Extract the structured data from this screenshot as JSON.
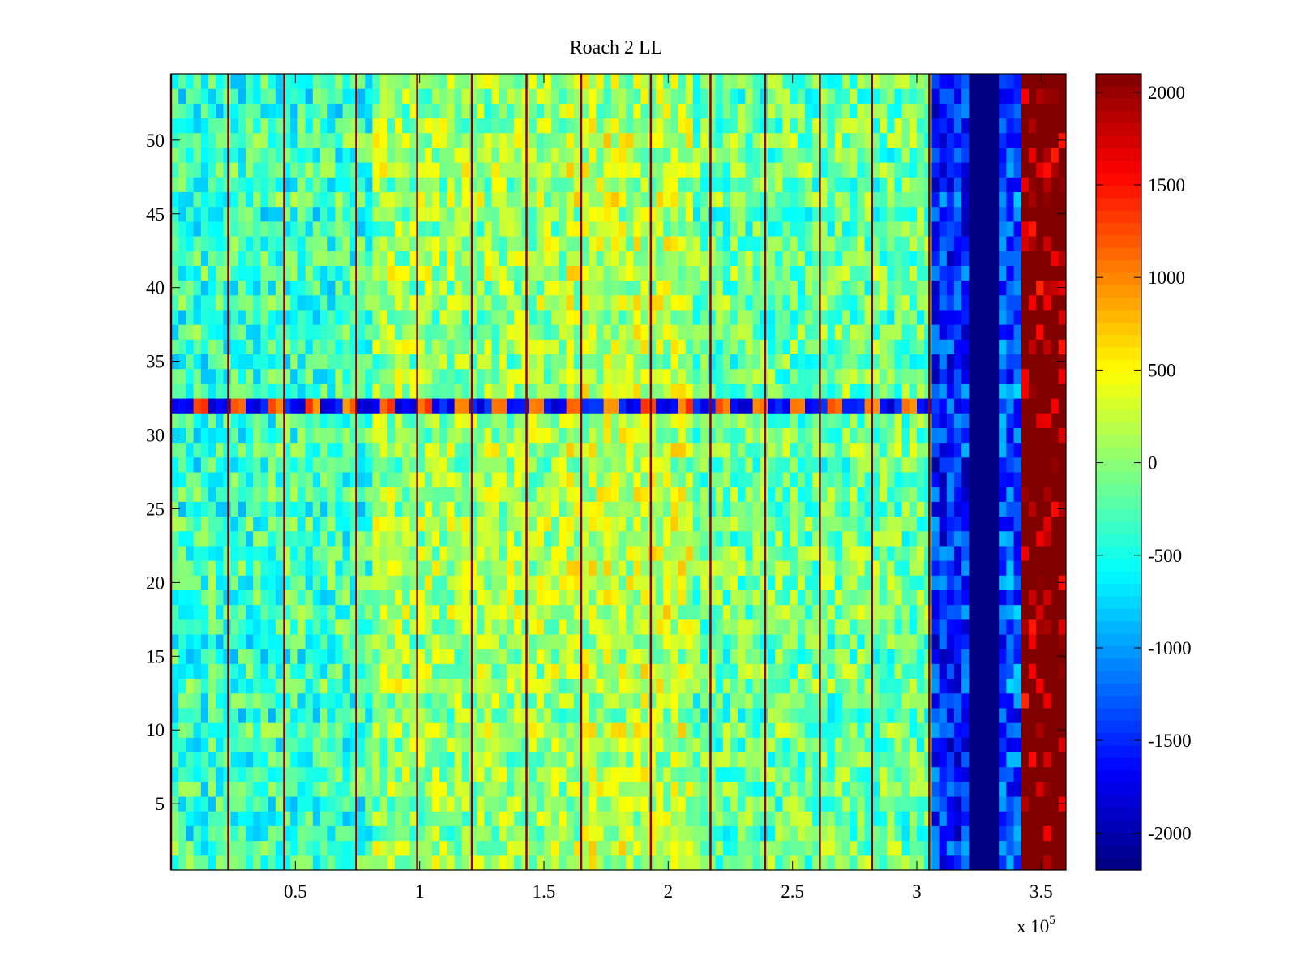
{
  "chart_data": {
    "type": "heatmap",
    "title": "Roach 2 LL",
    "xlabel": "",
    "ylabel": "",
    "x_multiplier_label": "x 10",
    "x_multiplier_exponent": "5",
    "xlim": [
      0,
      3.6
    ],
    "ylim": [
      0.5,
      54.5
    ],
    "x_ticks": [
      {
        "value": 0.5,
        "label": "0.5"
      },
      {
        "value": 1,
        "label": "1"
      },
      {
        "value": 1.5,
        "label": "1.5"
      },
      {
        "value": 2,
        "label": "2"
      },
      {
        "value": 2.5,
        "label": "2.5"
      },
      {
        "value": 3,
        "label": "3"
      },
      {
        "value": 3.5,
        "label": "3.5"
      }
    ],
    "y_ticks": [
      {
        "value": 5,
        "label": "5"
      },
      {
        "value": 10,
        "label": "10"
      },
      {
        "value": 15,
        "label": "15"
      },
      {
        "value": 20,
        "label": "20"
      },
      {
        "value": 25,
        "label": "25"
      },
      {
        "value": 30,
        "label": "30"
      },
      {
        "value": 35,
        "label": "35"
      },
      {
        "value": 40,
        "label": "40"
      },
      {
        "value": 45,
        "label": "45"
      },
      {
        "value": 50,
        "label": "50"
      }
    ],
    "colorbar": {
      "colormap": "jet",
      "range": [
        -2200,
        2100
      ],
      "ticks": [
        {
          "value": 2000,
          "label": "2000"
        },
        {
          "value": 1500,
          "label": "1500"
        },
        {
          "value": 1000,
          "label": "1000"
        },
        {
          "value": 500,
          "label": "500"
        },
        {
          "value": 0,
          "label": "0"
        },
        {
          "value": -500,
          "label": "-500"
        },
        {
          "value": -1000,
          "label": "-1000"
        },
        {
          "value": -1500,
          "label": "-1500"
        },
        {
          "value": -2000,
          "label": "-2000"
        }
      ]
    },
    "rows": 54,
    "segment_boundaries": [
      0.0,
      0.23,
      0.455,
      0.745,
      0.99,
      1.21,
      1.43,
      1.65,
      1.93,
      2.17,
      2.39,
      2.61,
      2.82,
      3.05
    ],
    "column_bands": [
      {
        "x_start": 0.0,
        "x_end": 0.8,
        "mean": -350
      },
      {
        "x_start": 0.8,
        "x_end": 1.6,
        "mean": 50
      },
      {
        "x_start": 1.6,
        "x_end": 2.1,
        "mean": 180
      },
      {
        "x_start": 2.1,
        "x_end": 3.05,
        "mean": -150
      },
      {
        "x_start": 3.05,
        "x_end": 3.22,
        "mean": -1500
      },
      {
        "x_start": 3.22,
        "x_end": 3.34,
        "mean": -2200
      },
      {
        "x_start": 3.34,
        "x_end": 3.42,
        "mean": -1300
      },
      {
        "x_start": 3.42,
        "x_end": 3.6,
        "mean": 2100
      }
    ],
    "anomalous_row": {
      "row": 32,
      "low_value": -1900,
      "high_value": 900
    },
    "color_colors": {
      "grid_line": "#8b0000",
      "axis": "#000000"
    }
  }
}
